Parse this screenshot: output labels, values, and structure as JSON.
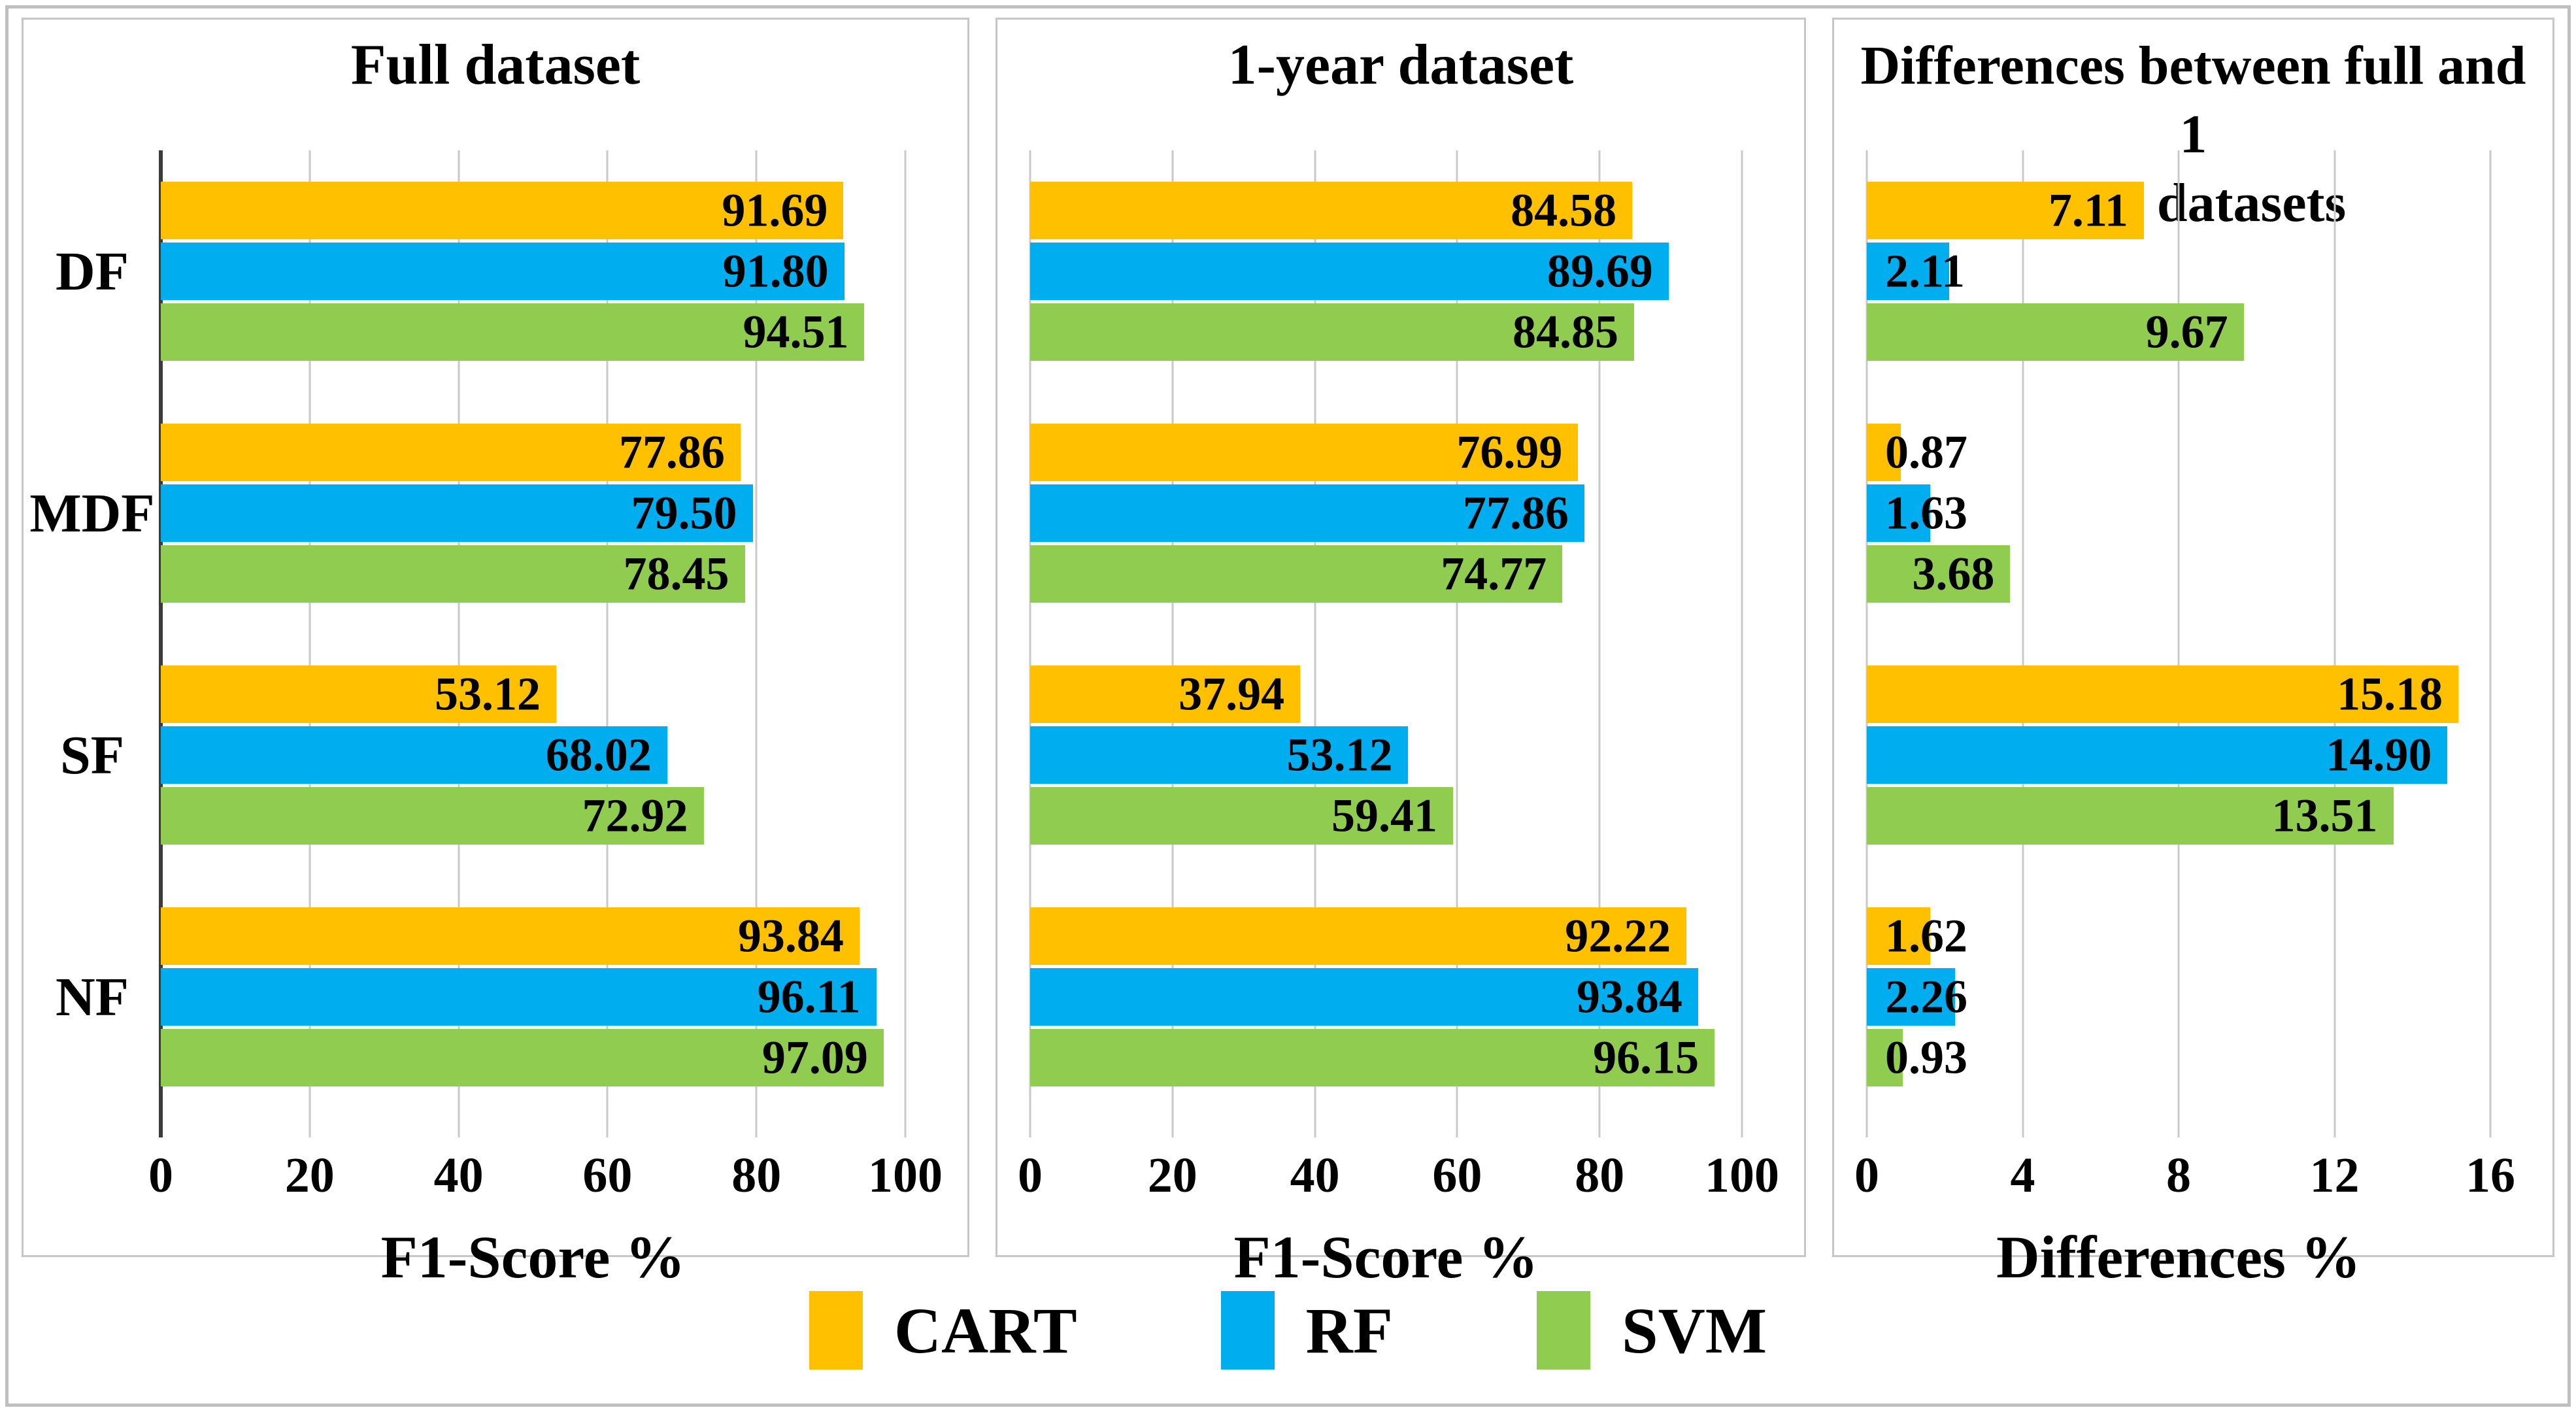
{
  "chart_data": [
    {
      "type": "bar",
      "orientation": "horizontal",
      "title": "Full dataset",
      "categories": [
        "DF",
        "MDF",
        "SF",
        "NF"
      ],
      "series": [
        {
          "name": "CART",
          "color": "#FFC000",
          "values": [
            91.69,
            77.86,
            53.12,
            93.84
          ]
        },
        {
          "name": "RF",
          "color": "#00AEEF",
          "values": [
            91.8,
            79.5,
            68.02,
            96.11
          ]
        },
        {
          "name": "SVM",
          "color": "#8FCC4F",
          "values": [
            94.51,
            78.45,
            72.92,
            97.09
          ]
        }
      ],
      "xlabel": "F1-Score %",
      "xlim": [
        0,
        100
      ],
      "xticks": [
        0,
        20,
        40,
        60,
        80,
        100
      ],
      "grid": true,
      "legend_position": "bottom-shared",
      "show_category_labels": true,
      "dark_zero_axis": true,
      "value_format": "2dp"
    },
    {
      "type": "bar",
      "orientation": "horizontal",
      "title": "1-year dataset",
      "categories": [
        "DF",
        "MDF",
        "SF",
        "NF"
      ],
      "series": [
        {
          "name": "CART",
          "color": "#FFC000",
          "values": [
            84.58,
            76.99,
            37.94,
            92.22
          ]
        },
        {
          "name": "RF",
          "color": "#00AEEF",
          "values": [
            89.69,
            77.86,
            53.12,
            93.84
          ]
        },
        {
          "name": "SVM",
          "color": "#8FCC4F",
          "values": [
            84.85,
            74.77,
            59.41,
            96.15
          ]
        }
      ],
      "xlabel": "F1-Score %",
      "xlim": [
        0,
        100
      ],
      "xticks": [
        0,
        20,
        40,
        60,
        80,
        100
      ],
      "grid": true,
      "legend_position": "bottom-shared",
      "show_category_labels": false,
      "dark_zero_axis": false,
      "value_format": "2dp"
    },
    {
      "type": "bar",
      "orientation": "horizontal",
      "title": "Differences between full and 1 year datasets",
      "title_lines": [
        "Differences between full and 1",
        "year datasets"
      ],
      "categories": [
        "DF",
        "MDF",
        "SF",
        "NF"
      ],
      "series": [
        {
          "name": "CART",
          "color": "#FFC000",
          "values": [
            7.11,
            0.87,
            15.18,
            1.62
          ]
        },
        {
          "name": "RF",
          "color": "#00AEEF",
          "values": [
            2.11,
            1.63,
            14.9,
            2.26
          ]
        },
        {
          "name": "SVM",
          "color": "#8FCC4F",
          "values": [
            9.67,
            3.68,
            13.51,
            0.93
          ]
        }
      ],
      "xlabel": "Differences %",
      "xlim": [
        0,
        16
      ],
      "xticks": [
        0,
        4,
        8,
        12,
        16
      ],
      "grid": true,
      "legend_position": "bottom-shared",
      "show_category_labels": false,
      "dark_zero_axis": false,
      "value_format": "2dp"
    }
  ],
  "legend": {
    "entries": [
      {
        "label": "CART",
        "color": "#FFC000"
      },
      {
        "label": "RF",
        "color": "#00AEEF"
      },
      {
        "label": "SVM",
        "color": "#8FCC4F"
      }
    ]
  },
  "style": {
    "gridline_color": "#C9C9C9",
    "panel_border_color": "#C6C6C6",
    "frame_border_color": "#C0C0C0",
    "axis_line_color": "#3B3B3B",
    "text_color": "#000000"
  }
}
